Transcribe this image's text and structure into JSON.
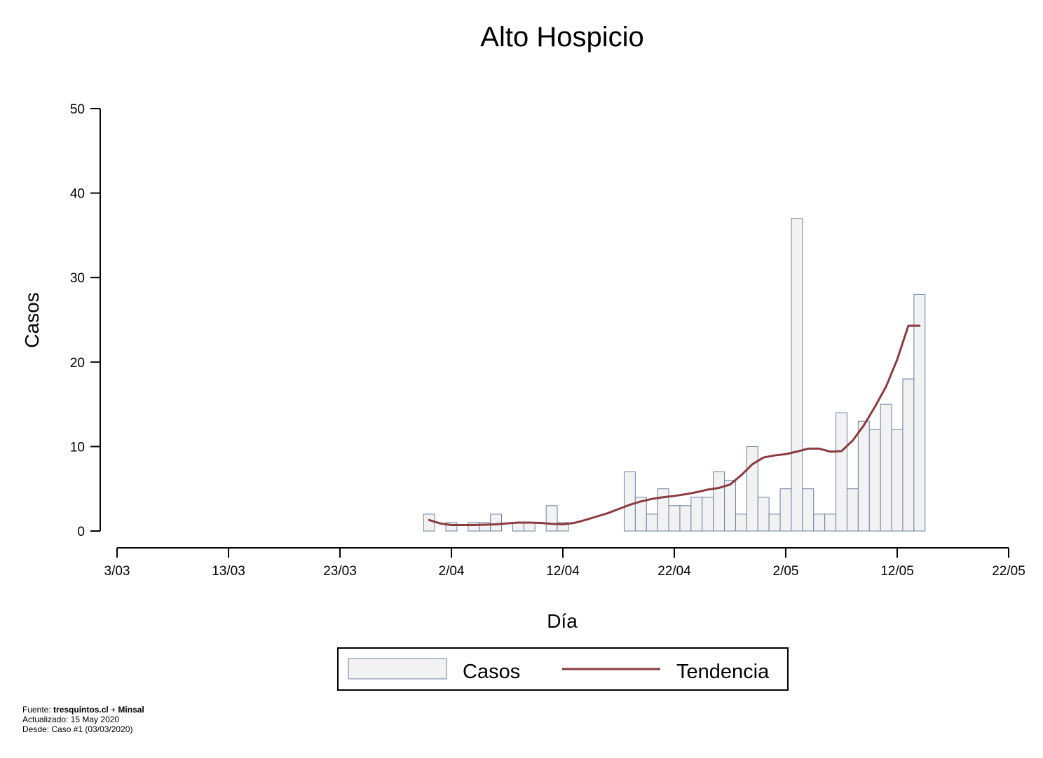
{
  "chart_data": {
    "type": "bar",
    "title": "Alto Hospicio",
    "xlabel": "Día",
    "ylabel": "Casos",
    "ylim": [
      0,
      50
    ],
    "yticks": [
      0,
      10,
      20,
      30,
      40,
      50
    ],
    "xlim": [
      "2020-03-03",
      "2020-05-22"
    ],
    "xticks": [
      "2020-03-03",
      "2020-03-13",
      "2020-03-23",
      "2020-04-02",
      "2020-04-12",
      "2020-04-22",
      "2020-05-02",
      "2020-05-12",
      "2020-05-22"
    ],
    "xtick_labels": [
      "3/03",
      "13/03",
      "23/03",
      "2/04",
      "12/04",
      "22/04",
      "2/05",
      "12/05",
      "22/05"
    ],
    "grid": false,
    "legend_position": "bottom",
    "series": [
      {
        "name": "Casos",
        "kind": "bar",
        "color": "#f2f2f2",
        "stroke": "#6b7fa3",
        "x": [
          "2020-03-31",
          "2020-04-01",
          "2020-04-02",
          "2020-04-03",
          "2020-04-04",
          "2020-04-05",
          "2020-04-06",
          "2020-04-07",
          "2020-04-08",
          "2020-04-09",
          "2020-04-10",
          "2020-04-11",
          "2020-04-12",
          "2020-04-13",
          "2020-04-14",
          "2020-04-15",
          "2020-04-16",
          "2020-04-17",
          "2020-04-18",
          "2020-04-19",
          "2020-04-20",
          "2020-04-21",
          "2020-04-22",
          "2020-04-23",
          "2020-04-24",
          "2020-04-25",
          "2020-04-26",
          "2020-04-27",
          "2020-04-28",
          "2020-04-29",
          "2020-04-30",
          "2020-05-01",
          "2020-05-02",
          "2020-05-03",
          "2020-05-04",
          "2020-05-05",
          "2020-05-06",
          "2020-05-07",
          "2020-05-08",
          "2020-05-09",
          "2020-05-10",
          "2020-05-11",
          "2020-05-12",
          "2020-05-13",
          "2020-05-14"
        ],
        "values": [
          2,
          0,
          1,
          0,
          1,
          1,
          2,
          0,
          1,
          1,
          0,
          3,
          1,
          0,
          0,
          0,
          0,
          0,
          7,
          4,
          2,
          5,
          3,
          3,
          4,
          4,
          7,
          6,
          2,
          10,
          4,
          2,
          5,
          37,
          5,
          2,
          2,
          14,
          5,
          13,
          12,
          15,
          12,
          18,
          28
        ]
      },
      {
        "name": "Tendencia",
        "kind": "line",
        "color": "#8b3a3f",
        "x": [
          "2020-03-31",
          "2020-04-01",
          "2020-04-02",
          "2020-04-03",
          "2020-04-04",
          "2020-04-05",
          "2020-04-06",
          "2020-04-07",
          "2020-04-08",
          "2020-04-09",
          "2020-04-10",
          "2020-04-11",
          "2020-04-12",
          "2020-04-13",
          "2020-04-14",
          "2020-04-15",
          "2020-04-16",
          "2020-04-17",
          "2020-04-18",
          "2020-04-19",
          "2020-04-20",
          "2020-04-21",
          "2020-04-22",
          "2020-04-23",
          "2020-04-24",
          "2020-04-25",
          "2020-04-26",
          "2020-04-27",
          "2020-04-28",
          "2020-04-29",
          "2020-04-30",
          "2020-05-01",
          "2020-05-02",
          "2020-05-03",
          "2020-05-04",
          "2020-05-05",
          "2020-05-06",
          "2020-05-07",
          "2020-05-08",
          "2020-05-09",
          "2020-05-10",
          "2020-05-11",
          "2020-05-12",
          "2020-05-13",
          "2020-05-14"
        ],
        "values": [
          1.3,
          0.9,
          0.7,
          0.7,
          0.7,
          0.75,
          0.8,
          0.9,
          1.0,
          1.0,
          0.95,
          0.85,
          0.8,
          0.95,
          1.3,
          1.7,
          2.1,
          2.6,
          3.1,
          3.5,
          3.8,
          4.0,
          4.15,
          4.35,
          4.6,
          4.9,
          5.1,
          5.5,
          6.6,
          7.9,
          8.7,
          8.95,
          9.1,
          9.4,
          9.75,
          9.75,
          9.4,
          9.45,
          10.7,
          12.5,
          14.7,
          17.1,
          20.3,
          24.3,
          24.3
        ]
      }
    ]
  },
  "legend": {
    "items": [
      {
        "label": "Casos",
        "color": "#f2f2f2",
        "stroke": "#6b7fa3"
      },
      {
        "label": "Tendencia",
        "color": "#8b3a3f"
      }
    ]
  },
  "footer": {
    "source_prefix": "Fuente: ",
    "source_bold": "tresquintos.cl",
    "source_plus": " + ",
    "source_bold2": "Minsal",
    "updated": "Actualizado: 15 May 2020",
    "since": "Desde: Caso #1  (03/03/2020)"
  }
}
